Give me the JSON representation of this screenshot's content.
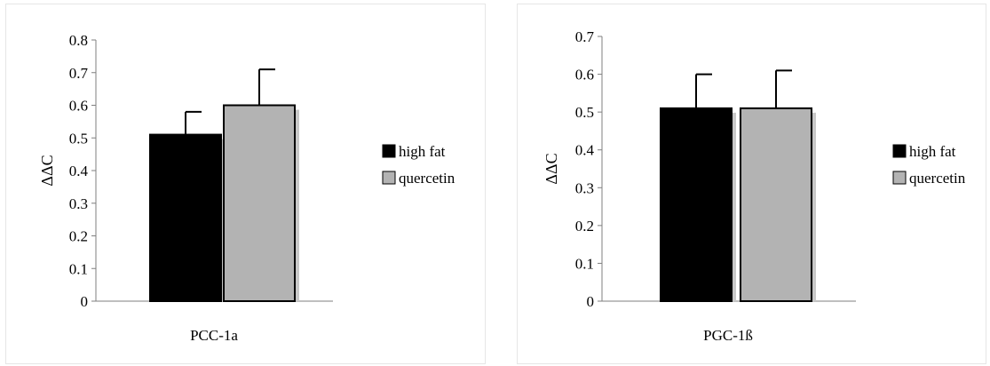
{
  "chart_data": [
    {
      "type": "bar",
      "categories": [
        "PCC-1a"
      ],
      "xlabel": "PCC-1a",
      "ylabel": "ΔΔC",
      "ylim": [
        0,
        0.8
      ],
      "ytick_step": 0.1,
      "grid": false,
      "legend_position": "right",
      "series": [
        {
          "name": "high fat",
          "values": [
            0.51
          ],
          "error": [
            0.07
          ],
          "color": "#000000"
        },
        {
          "name": "quercetin",
          "values": [
            0.6
          ],
          "error": [
            0.11
          ],
          "color": "#b3b3b3"
        }
      ]
    },
    {
      "type": "bar",
      "categories": [
        "PGC-1ß"
      ],
      "xlabel": "PGC-1ß",
      "ylabel": "ΔΔC",
      "ylim": [
        0,
        0.7
      ],
      "ytick_step": 0.1,
      "grid": false,
      "legend_position": "right",
      "series": [
        {
          "name": "high fat",
          "values": [
            0.51
          ],
          "error": [
            0.09
          ],
          "color": "#000000"
        },
        {
          "name": "quercetin",
          "values": [
            0.51
          ],
          "error": [
            0.1
          ],
          "color": "#b3b3b3"
        }
      ]
    }
  ]
}
